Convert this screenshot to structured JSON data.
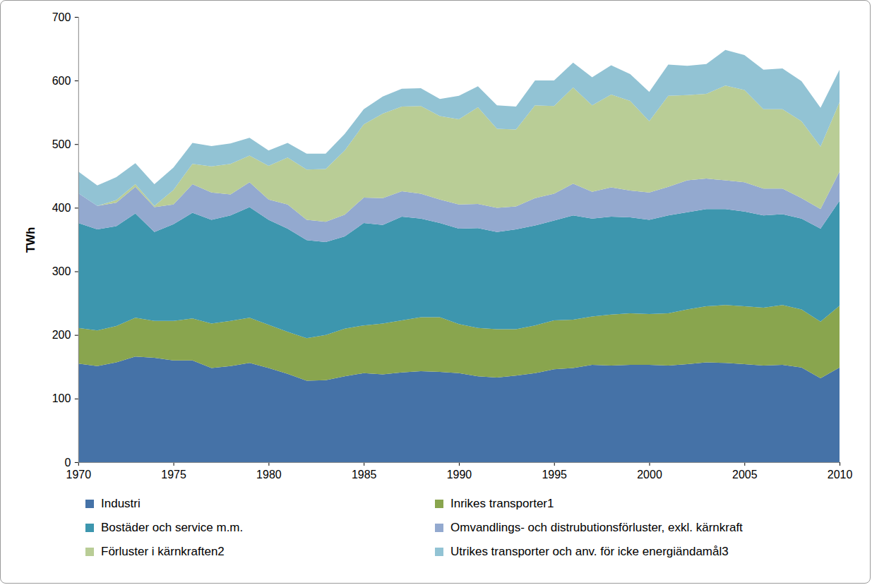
{
  "chart_data": {
    "type": "area",
    "stacked": true,
    "grid": false,
    "legend": "bottom",
    "y_label": "TWh",
    "x": [
      1970,
      1971,
      1972,
      1973,
      1974,
      1975,
      1976,
      1977,
      1978,
      1979,
      1980,
      1981,
      1982,
      1983,
      1984,
      1985,
      1986,
      1987,
      1988,
      1989,
      1990,
      1991,
      1992,
      1993,
      1994,
      1995,
      1996,
      1997,
      1998,
      1999,
      2000,
      2001,
      2002,
      2003,
      2004,
      2005,
      2006,
      2007,
      2008,
      2009,
      2010
    ],
    "xlim": [
      1970,
      2010
    ],
    "xticks": [
      1970,
      1975,
      1980,
      1985,
      1990,
      1995,
      2000,
      2005,
      2010
    ],
    "ylim": [
      0,
      700
    ],
    "yticks": [
      0,
      100,
      200,
      300,
      400,
      500,
      600,
      700
    ],
    "series": [
      {
        "name": "Industri",
        "color": "#4572a7",
        "values": [
          155,
          151,
          157,
          166,
          164,
          160,
          160,
          148,
          151,
          156,
          148,
          139,
          128,
          129,
          135,
          140,
          138,
          141,
          143,
          142,
          140,
          135,
          133,
          136,
          140,
          146,
          148,
          153,
          152,
          153,
          153,
          152,
          154,
          157,
          156,
          154,
          152,
          153,
          149,
          132,
          149
        ]
      },
      {
        "name": "Inrikes transporter1",
        "color": "#89a54e",
        "values": [
          56,
          56,
          57,
          61,
          58,
          62,
          66,
          70,
          71,
          71,
          68,
          66,
          67,
          71,
          75,
          75,
          80,
          82,
          85,
          86,
          77,
          76,
          76,
          73,
          75,
          77,
          76,
          76,
          80,
          81,
          80,
          82,
          86,
          88,
          91,
          91,
          91,
          94,
          91,
          89,
          97
        ]
      },
      {
        "name": "Bostäder och service m.m.",
        "color": "#3d96ae",
        "values": [
          165,
          159,
          157,
          164,
          140,
          152,
          166,
          163,
          166,
          174,
          165,
          162,
          154,
          146,
          145,
          161,
          155,
          163,
          155,
          148,
          150,
          157,
          153,
          157,
          157,
          157,
          164,
          154,
          154,
          151,
          148,
          154,
          153,
          153,
          151,
          149,
          145,
          143,
          143,
          146,
          165
        ]
      },
      {
        "name": "Omvandlings- och distrubutionsförluster, exkl. kärnkraft",
        "color": "#93a9cf",
        "values": [
          47,
          37,
          37,
          42,
          39,
          31,
          45,
          43,
          33,
          39,
          32,
          38,
          32,
          32,
          34,
          40,
          42,
          40,
          39,
          37,
          38,
          38,
          38,
          36,
          43,
          42,
          50,
          42,
          46,
          42,
          43,
          45,
          50,
          48,
          45,
          46,
          42,
          40,
          32,
          31,
          46
        ]
      },
      {
        "name": "Förluster i kärnkraften2",
        "color": "#b9cd96",
        "values": [
          0,
          0,
          4,
          4,
          2,
          23,
          32,
          41,
          48,
          42,
          53,
          74,
          79,
          83,
          101,
          115,
          133,
          133,
          138,
          131,
          134,
          152,
          124,
          121,
          146,
          138,
          151,
          136,
          146,
          141,
          112,
          143,
          134,
          133,
          149,
          145,
          125,
          125,
          121,
          98,
          109
        ]
      },
      {
        "name": "Utrikes transporter och anv. för icke energiändamål3",
        "color": "#92c3d4",
        "values": [
          34,
          32,
          36,
          33,
          34,
          35,
          33,
          32,
          32,
          28,
          24,
          23,
          25,
          24,
          26,
          24,
          27,
          28,
          28,
          27,
          37,
          33,
          37,
          36,
          39,
          40,
          39,
          44,
          46,
          42,
          46,
          49,
          46,
          47,
          56,
          55,
          62,
          64,
          63,
          61,
          51
        ]
      }
    ]
  }
}
